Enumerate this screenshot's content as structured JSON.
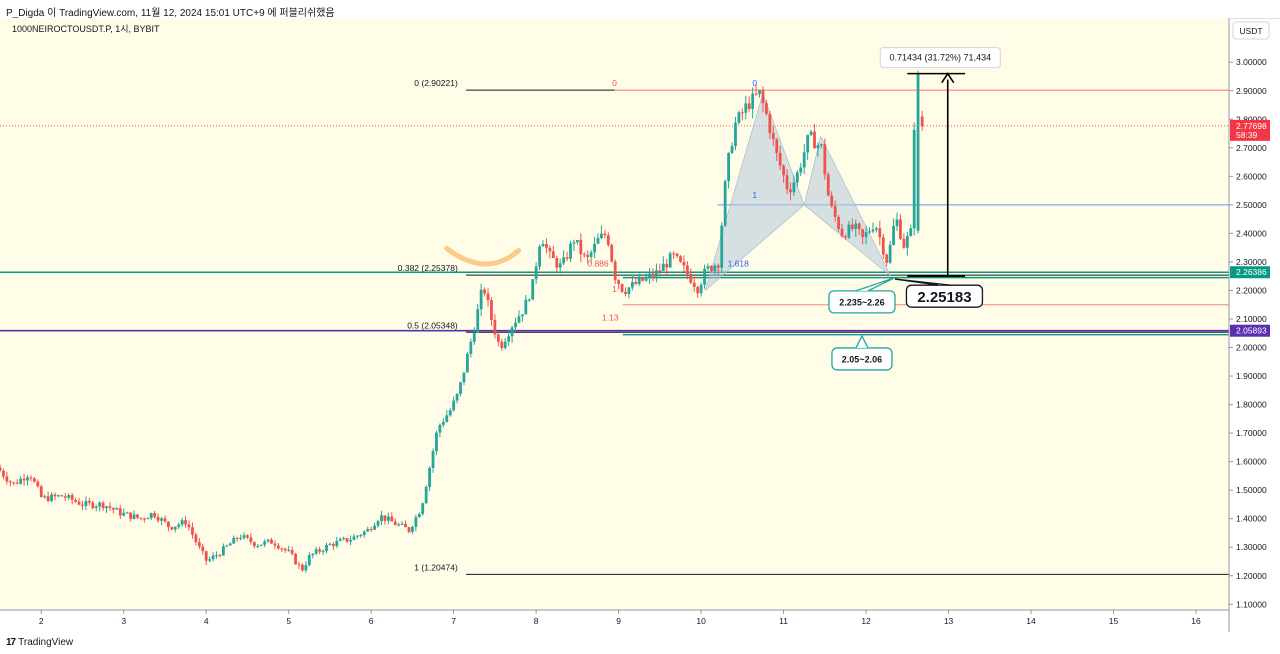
{
  "header": {
    "publish_note": "P_Digda 이 TradingView.com, 11월 12, 2024 15:01 UTC+9 에 퍼블리쉬했음"
  },
  "symbol_line": "1000NEIROCTOUSDT.P, 1시, BYBIT",
  "currency": "USDT",
  "footer": {
    "brand": "TradingView",
    "brand_mark": "17"
  },
  "colors": {
    "background": "#fffde7",
    "up": "#26a69a",
    "down": "#ef5350",
    "fib_line": "#131722",
    "green_level": "#089981",
    "purple_level": "#5b2fb0",
    "pattern_fill": "#b7c9dd",
    "price_badge": "#f23645"
  },
  "price_badges": [
    {
      "price": 2.77698,
      "label": "2.77698",
      "sub": "58:39",
      "color": "#f23645"
    },
    {
      "price": 2.26386,
      "label": "2.26386",
      "color": "#089981"
    },
    {
      "price": 2.05893,
      "label": "2.05893",
      "color": "#5b2fb0"
    }
  ],
  "fib_levels": [
    {
      "label": "0 (2.90221)",
      "price": 2.90221
    },
    {
      "label": "0.382 (2.25378)",
      "price": 2.25378
    },
    {
      "label": "0.5 (2.05348)",
      "price": 2.05348
    },
    {
      "label": "1 (1.20474)",
      "price": 1.20474
    }
  ],
  "pattern_labels": [
    {
      "text": "0",
      "price": 2.90221,
      "day": 8.95,
      "color": "#ef5350"
    },
    {
      "text": "0",
      "price": 2.90221,
      "day": 10.65,
      "color": "#2962ff"
    },
    {
      "text": "1",
      "price": 2.51,
      "day": 10.65,
      "color": "#2962ff"
    },
    {
      "text": "0.886",
      "price": 2.27,
      "day": 8.75,
      "color": "#ef5350"
    },
    {
      "text": "1.618",
      "price": 2.27,
      "day": 10.45,
      "color": "#2962ff"
    },
    {
      "text": "1",
      "price": 2.18,
      "day": 8.95,
      "color": "#ef5350"
    },
    {
      "text": "1.13",
      "price": 2.08,
      "day": 8.9,
      "color": "#ef5350"
    }
  ],
  "annotations": {
    "measure": "0.71434 (31.72%) 71,434",
    "zone_upper": "2.235~2.26",
    "zone_lower": "2.05~2.06",
    "key_price": "2.25183"
  },
  "chart_data": {
    "type": "candlestick",
    "symbol": "1000NEIROCTOUSDT.P",
    "interval": "1시",
    "exchange": "BYBIT",
    "x_ticks": [
      "2",
      "3",
      "4",
      "5",
      "6",
      "7",
      "8",
      "9",
      "10",
      "11",
      "12",
      "13",
      "14",
      "15",
      "16"
    ],
    "x_range": [
      1.5,
      16.4
    ],
    "y_ticks": [
      "3.00000",
      "2.90000",
      "2.80000",
      "2.70000",
      "2.60000",
      "2.50000",
      "2.40000",
      "2.30000",
      "2.20000",
      "2.10000",
      "2.00000",
      "1.90000",
      "1.80000",
      "1.70000",
      "1.60000",
      "1.50000",
      "1.40000",
      "1.30000",
      "1.20000",
      "1.10000"
    ],
    "y_range": [
      1.08,
      3.155
    ],
    "anchors": [
      [
        1.5,
        1.58
      ],
      [
        1.7,
        1.52
      ],
      [
        1.9,
        1.56
      ],
      [
        2.05,
        1.47
      ],
      [
        2.3,
        1.48
      ],
      [
        2.55,
        1.45
      ],
      [
        2.8,
        1.45
      ],
      [
        3.0,
        1.42
      ],
      [
        3.25,
        1.4
      ],
      [
        3.4,
        1.42
      ],
      [
        3.6,
        1.37
      ],
      [
        3.8,
        1.39
      ],
      [
        3.95,
        1.3
      ],
      [
        4.05,
        1.25
      ],
      [
        4.2,
        1.28
      ],
      [
        4.45,
        1.34
      ],
      [
        4.65,
        1.31
      ],
      [
        4.85,
        1.32
      ],
      [
        5.05,
        1.28
      ],
      [
        5.2,
        1.22
      ],
      [
        5.3,
        1.27
      ],
      [
        5.55,
        1.31
      ],
      [
        5.8,
        1.33
      ],
      [
        6.0,
        1.36
      ],
      [
        6.15,
        1.41
      ],
      [
        6.35,
        1.38
      ],
      [
        6.5,
        1.36
      ],
      [
        6.65,
        1.44
      ],
      [
        6.75,
        1.58
      ],
      [
        6.85,
        1.72
      ],
      [
        7.0,
        1.78
      ],
      [
        7.1,
        1.84
      ],
      [
        7.2,
        1.96
      ],
      [
        7.3,
        2.08
      ],
      [
        7.4,
        2.22
      ],
      [
        7.5,
        2.1
      ],
      [
        7.6,
        2.0
      ],
      [
        7.75,
        2.08
      ],
      [
        7.9,
        2.14
      ],
      [
        8.0,
        2.22
      ],
      [
        8.1,
        2.4
      ],
      [
        8.2,
        2.32
      ],
      [
        8.35,
        2.28
      ],
      [
        8.5,
        2.38
      ],
      [
        8.65,
        2.3
      ],
      [
        8.8,
        2.38
      ],
      [
        8.9,
        2.4
      ],
      [
        9.0,
        2.25
      ],
      [
        9.1,
        2.2
      ],
      [
        9.3,
        2.23
      ],
      [
        9.5,
        2.26
      ],
      [
        9.7,
        2.32
      ],
      [
        9.9,
        2.25
      ],
      [
        10.0,
        2.21
      ],
      [
        10.1,
        2.27
      ],
      [
        10.25,
        2.3
      ],
      [
        10.35,
        2.62
      ],
      [
        10.45,
        2.78
      ],
      [
        10.6,
        2.85
      ],
      [
        10.75,
        2.89
      ],
      [
        10.85,
        2.8
      ],
      [
        10.95,
        2.68
      ],
      [
        11.1,
        2.55
      ],
      [
        11.2,
        2.6
      ],
      [
        11.35,
        2.74
      ],
      [
        11.5,
        2.7
      ],
      [
        11.6,
        2.5
      ],
      [
        11.75,
        2.4
      ],
      [
        11.9,
        2.42
      ],
      [
        12.0,
        2.38
      ],
      [
        12.15,
        2.44
      ],
      [
        12.3,
        2.3
      ],
      [
        12.4,
        2.46
      ],
      [
        12.5,
        2.36
      ],
      [
        12.6,
        2.41
      ],
      [
        12.62,
        2.78
      ]
    ],
    "fib_retracement": [
      {
        "ratio": "0",
        "price": 2.90221
      },
      {
        "ratio": "0.382",
        "price": 2.25378
      },
      {
        "ratio": "0.5",
        "price": 2.05348
      },
      {
        "ratio": "1",
        "price": 1.20474
      }
    ],
    "last_price": 2.77698,
    "measure_change": {
      "abs": 0.71434,
      "pct": 31.72,
      "ticks": 71434
    }
  }
}
